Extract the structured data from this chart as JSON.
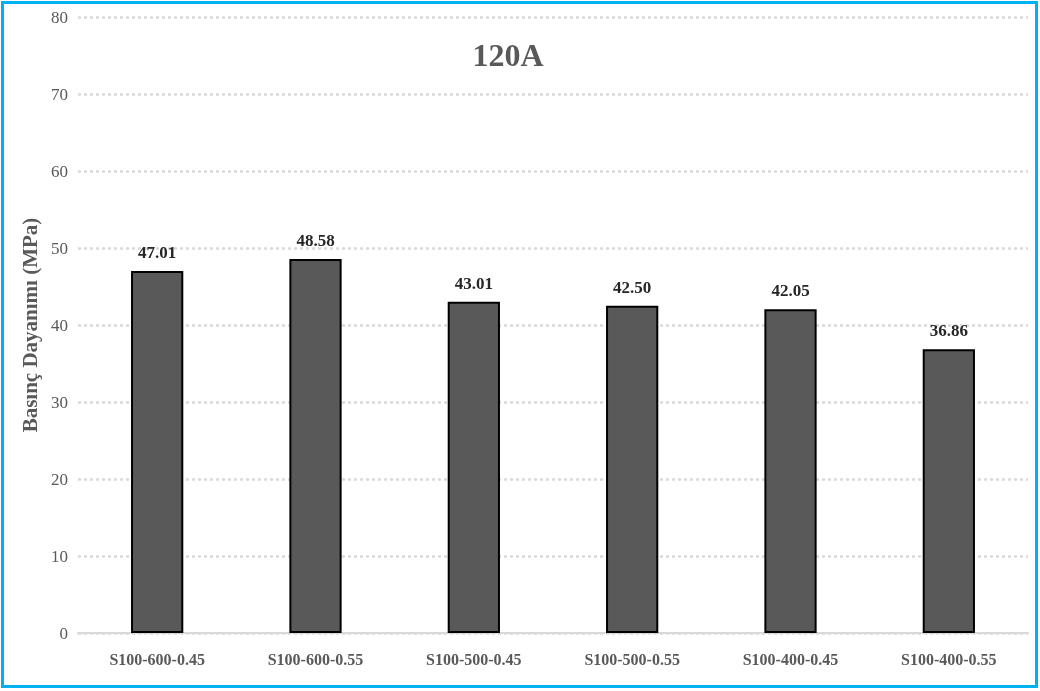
{
  "chart_data": {
    "type": "bar",
    "title": "120A",
    "ylabel": "Basınç Dayanımı (MPa)",
    "categories": [
      "S100-600-0.45",
      "S100-600-0.55",
      "S100-500-0.45",
      "S100-500-0.55",
      "S100-400-0.45",
      "S100-400-0.55"
    ],
    "values": [
      47.01,
      48.58,
      43.01,
      42.5,
      42.05,
      36.86
    ],
    "value_labels": [
      "47.01",
      "48.58",
      "43.01",
      "42.50",
      "42.05",
      "36.86"
    ],
    "color": "#595959",
    "ylim": [
      0,
      80
    ],
    "yticks": [
      0,
      10,
      20,
      30,
      40,
      50,
      60,
      70,
      80
    ],
    "grid": "y"
  }
}
